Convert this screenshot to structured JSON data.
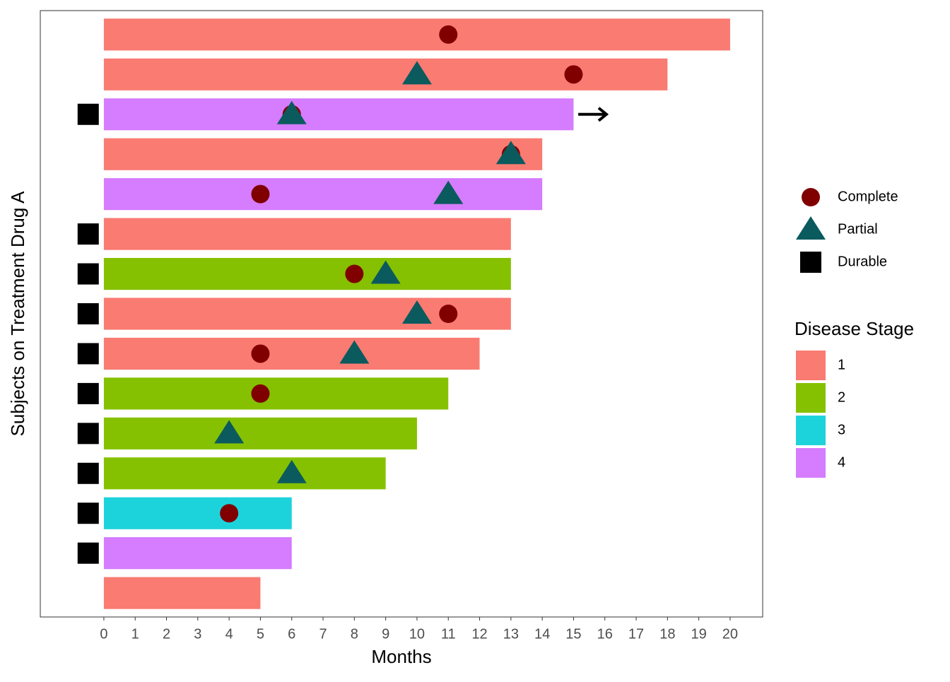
{
  "chart_data": {
    "type": "swimmer",
    "xlabel": "Months",
    "ylabel": "Subjects on Treatment Drug A",
    "xlim": [
      -2.03,
      21.04
    ],
    "xticks": [
      0,
      1,
      2,
      3,
      4,
      5,
      6,
      7,
      8,
      9,
      10,
      11,
      12,
      13,
      14,
      15,
      16,
      17,
      18,
      19,
      20
    ],
    "values": [
      20,
      18,
      15,
      14,
      14,
      13,
      13,
      13,
      12,
      11,
      10,
      9,
      6,
      6,
      5
    ],
    "stages": [
      "1",
      "1",
      "4",
      "1",
      "4",
      "1",
      "2",
      "1",
      "1",
      "2",
      "2",
      "2",
      "3",
      "4",
      "1"
    ],
    "fill_legend": {
      "title": "Disease Stage",
      "entries": [
        {
          "name": "1",
          "color": "#F97B72"
        },
        {
          "name": "2",
          "color": "#85C100"
        },
        {
          "name": "3",
          "color": "#1DD3DB"
        },
        {
          "name": "4",
          "color": "#D57CFF"
        }
      ]
    },
    "markers": [
      {
        "name": "Complete",
        "shape": "circle",
        "color": "#800000",
        "values": [
          11,
          15,
          6,
          13,
          5,
          null,
          8,
          11,
          5,
          5,
          null,
          null,
          4,
          null,
          null
        ]
      },
      {
        "name": "Partial",
        "shape": "triangle",
        "color": "#0B5A5E",
        "values": [
          null,
          10,
          6,
          13,
          11,
          null,
          9,
          10,
          8,
          null,
          4,
          6,
          null,
          null,
          null
        ]
      },
      {
        "name": "Durable",
        "shape": "square",
        "color": "#000000",
        "values": [
          null,
          null,
          -0.5,
          null,
          null,
          -0.5,
          -0.5,
          -0.5,
          -0.5,
          -0.5,
          -0.5,
          -0.5,
          -0.5,
          -0.5,
          null
        ]
      }
    ],
    "arrows": {
      "values": [
        null,
        null,
        15.15,
        null,
        null,
        null,
        null,
        null,
        null,
        null,
        null,
        null,
        null,
        null,
        null
      ],
      "length": 0.9
    }
  }
}
